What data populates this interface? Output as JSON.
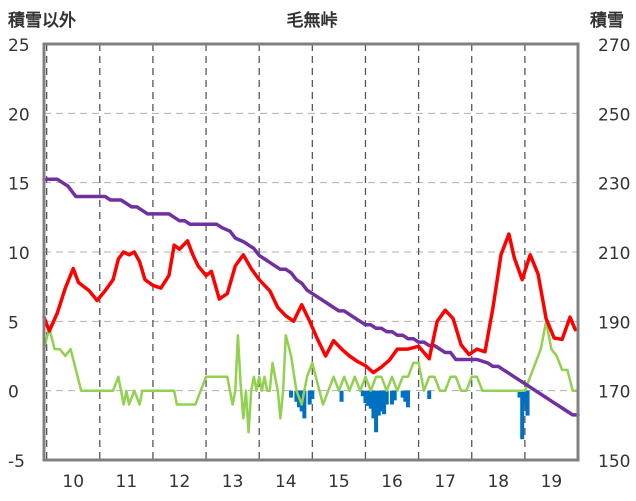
{
  "chart_data": {
    "type": "line",
    "title": "毛無峠",
    "ylabel_left": "積雪以外",
    "ylabel_right": "積雪",
    "ylim_left": [
      -5,
      25
    ],
    "ylim_right": [
      150,
      270
    ],
    "yticks_left": [
      "-5",
      "0",
      "5",
      "10",
      "15",
      "20",
      "25"
    ],
    "yticks_right": [
      "150",
      "170",
      "190",
      "210",
      "230",
      "250",
      "270"
    ],
    "xlim": [
      9.45,
      19.5
    ],
    "xticks": [
      "10",
      "11",
      "12",
      "13",
      "14",
      "15",
      "16",
      "17",
      "18",
      "19"
    ],
    "grid": true,
    "colors": {
      "red": "#ff0000",
      "green": "#92d050",
      "purple": "#7030a0",
      "blue": "#0070c0",
      "frame": "#808080"
    },
    "series": [
      {
        "color": "#ff0000",
        "axis": "left",
        "kind": "line",
        "x": [
          9.45,
          9.55,
          9.7,
          9.85,
          10.0,
          10.1,
          10.3,
          10.45,
          10.6,
          10.75,
          10.85,
          10.95,
          11.05,
          11.15,
          11.25,
          11.35,
          11.5,
          11.65,
          11.8,
          11.9,
          12.0,
          12.15,
          12.25,
          12.35,
          12.5,
          12.6,
          12.75,
          12.9,
          13.05,
          13.2,
          13.35,
          13.5,
          13.7,
          13.85,
          14.0,
          14.15,
          14.3,
          14.45,
          14.6,
          14.75,
          14.9,
          15.05,
          15.2,
          15.35,
          15.5,
          15.65,
          15.8,
          15.95,
          16.1,
          16.3,
          16.5,
          16.7,
          16.85,
          17.0,
          17.15,
          17.3,
          17.45,
          17.6,
          17.75,
          17.9,
          18.05,
          18.2,
          18.3,
          18.45,
          18.6,
          18.75,
          18.9,
          19.05,
          19.2,
          19.35,
          19.45
        ],
        "y": [
          5.3,
          4.3,
          5.6,
          7.4,
          8.8,
          7.8,
          7.2,
          6.5,
          7.2,
          8.0,
          9.5,
          10.0,
          9.8,
          10.0,
          9.3,
          8.0,
          7.6,
          7.4,
          8.3,
          10.5,
          10.2,
          10.8,
          9.8,
          9.0,
          8.3,
          8.6,
          6.6,
          7.0,
          9.0,
          9.8,
          8.8,
          8.0,
          7.2,
          6.0,
          5.4,
          5.0,
          6.2,
          5.0,
          3.7,
          2.5,
          3.6,
          3.0,
          2.5,
          2.1,
          1.8,
          1.3,
          1.7,
          2.2,
          3.0,
          3.0,
          3.2,
          2.3,
          5.0,
          5.8,
          5.2,
          3.3,
          2.6,
          3.0,
          2.8,
          6.0,
          9.8,
          11.3,
          9.6,
          8.0,
          9.8,
          8.4,
          5.2,
          3.8,
          3.7,
          5.3,
          4.4
        ]
      },
      {
        "color": "#92d050",
        "axis": "left",
        "kind": "line",
        "x": [
          9.45,
          9.55,
          9.65,
          9.75,
          9.85,
          9.95,
          10.05,
          10.15,
          10.25,
          10.35,
          10.45,
          10.55,
          10.65,
          10.75,
          10.85,
          10.9,
          10.95,
          11.0,
          11.05,
          11.15,
          11.25,
          11.3,
          11.35,
          11.4,
          11.5,
          11.6,
          11.7,
          11.8,
          11.9,
          11.95,
          12.0,
          12.05,
          12.1,
          12.2,
          12.3,
          12.4,
          12.5,
          12.6,
          12.7,
          12.8,
          12.9,
          13.0,
          13.05,
          13.1,
          13.15,
          13.2,
          13.25,
          13.3,
          13.35,
          13.4,
          13.45,
          13.5,
          13.55,
          13.6,
          13.65,
          13.7,
          13.75,
          13.8,
          13.85,
          13.9,
          13.95,
          14.0,
          14.1,
          14.2,
          14.3,
          14.4,
          14.5,
          14.6,
          14.7,
          14.8,
          14.9,
          15.0,
          15.1,
          15.2,
          15.3,
          15.4,
          15.5,
          15.6,
          15.7,
          15.8,
          15.9,
          16.0,
          16.1,
          16.2,
          16.3,
          16.4,
          16.5,
          16.6,
          16.7,
          16.8,
          16.9,
          17.0,
          17.1,
          17.2,
          17.3,
          17.4,
          17.5,
          17.6,
          17.7,
          17.8,
          17.9,
          18.0,
          18.1,
          18.2,
          18.3,
          18.4,
          18.5,
          18.6,
          18.7,
          18.8,
          18.9,
          19.0,
          19.1,
          19.2,
          19.3,
          19.4,
          19.5
        ],
        "y": [
          3.0,
          4.5,
          3.0,
          3.0,
          2.5,
          3.0,
          1.5,
          0.0,
          0.0,
          0.0,
          0.0,
          0.0,
          0.0,
          0.0,
          1.0,
          0.0,
          -1.0,
          0.0,
          -1.0,
          0.0,
          -1.0,
          0.0,
          0.0,
          0.0,
          0.0,
          0.0,
          0.0,
          0.0,
          0.0,
          -1.0,
          -1.0,
          -1.0,
          -1.0,
          -1.0,
          -1.0,
          0.0,
          1.0,
          1.0,
          1.0,
          1.0,
          1.0,
          -1.0,
          0.0,
          4.0,
          0.5,
          -2.0,
          0.0,
          -3.0,
          0.0,
          1.0,
          0.0,
          1.0,
          0.0,
          1.0,
          0.0,
          0.0,
          2.0,
          1.0,
          0.0,
          -2.0,
          0.0,
          4.0,
          2.5,
          0.0,
          -1.0,
          1.0,
          2.0,
          0.5,
          -1.0,
          0.0,
          1.0,
          0.0,
          1.0,
          0.0,
          1.0,
          0.0,
          1.0,
          0.0,
          1.0,
          1.0,
          0.0,
          1.0,
          0.0,
          1.0,
          1.0,
          2.0,
          2.0,
          0.0,
          1.0,
          1.0,
          0.0,
          0.0,
          1.0,
          1.0,
          0.0,
          0.0,
          1.0,
          1.0,
          0.0,
          0.0,
          0.0,
          0.0,
          0.0,
          0.0,
          0.0,
          0.0,
          0.0,
          1.0,
          2.0,
          3.0,
          5.0,
          3.0,
          2.5,
          1.5,
          1.5,
          0.0,
          0.0
        ]
      },
      {
        "color": "#7030a0",
        "axis": "right",
        "kind": "line",
        "x": [
          9.45,
          9.7,
          9.8,
          9.9,
          10.0,
          10.05,
          10.15,
          10.3,
          10.6,
          10.7,
          10.9,
          11.0,
          11.1,
          11.2,
          11.3,
          11.4,
          11.6,
          11.8,
          11.9,
          12.0,
          12.1,
          12.2,
          12.3,
          12.45,
          12.7,
          12.8,
          12.95,
          13.05,
          13.2,
          13.3,
          13.4,
          13.5,
          13.6,
          13.7,
          13.8,
          13.9,
          14.0,
          14.1,
          14.2,
          14.3,
          14.4,
          14.5,
          14.6,
          14.7,
          14.8,
          14.9,
          15.0,
          15.1,
          15.2,
          15.3,
          15.4,
          15.5,
          15.6,
          15.7,
          15.8,
          15.9,
          16.0,
          16.1,
          16.2,
          16.3,
          16.4,
          16.5,
          16.6,
          16.7,
          16.8,
          16.9,
          17.0,
          17.1,
          17.2,
          17.4,
          17.5,
          17.6,
          17.8,
          17.9,
          18.0,
          18.1,
          18.2,
          18.3,
          18.4,
          18.5,
          18.6,
          18.7,
          18.8,
          18.9,
          19.0,
          19.1,
          19.2,
          19.3,
          19.4,
          19.5
        ],
        "y": [
          231,
          231,
          230,
          229,
          227,
          226,
          226,
          226,
          226,
          225,
          225,
          224,
          223,
          223,
          222,
          221,
          221,
          221,
          220,
          219,
          219,
          218,
          218,
          218,
          218,
          217,
          216,
          214,
          213,
          212,
          211,
          209,
          208,
          207,
          206,
          205,
          205,
          204,
          202,
          201,
          199,
          198,
          197,
          196,
          195,
          194,
          193,
          193,
          192,
          191,
          190,
          189,
          189,
          188,
          188,
          187,
          187,
          186,
          186,
          185,
          185,
          184,
          184,
          183,
          183,
          182,
          181,
          181,
          179,
          179,
          179,
          179,
          178,
          177,
          177,
          176,
          175,
          174,
          173,
          172,
          171,
          170,
          169,
          168,
          167,
          166,
          165,
          164,
          163,
          163
        ]
      },
      {
        "color": "#0070c0",
        "axis": "left",
        "kind": "bar",
        "x": [
          14.1,
          14.2,
          14.25,
          14.3,
          14.35,
          14.45,
          14.5,
          15.05,
          15.45,
          15.5,
          15.55,
          15.6,
          15.65,
          15.7,
          15.75,
          15.8,
          15.85,
          15.9,
          16.0,
          16.05,
          16.2,
          16.25,
          16.3,
          16.7,
          18.4,
          18.45,
          18.5,
          18.55
        ],
        "y": [
          -0.5,
          -0.8,
          -1.2,
          -1.5,
          -2.0,
          -1.0,
          -0.6,
          -0.8,
          -0.4,
          -0.9,
          -1.1,
          -1.3,
          -2.0,
          -3.0,
          -1.8,
          -1.5,
          -1.7,
          -1.0,
          -1.0,
          -0.7,
          -0.5,
          -0.8,
          -1.2,
          -0.6,
          -0.5,
          -3.5,
          -1.0,
          -1.8
        ]
      }
    ]
  }
}
